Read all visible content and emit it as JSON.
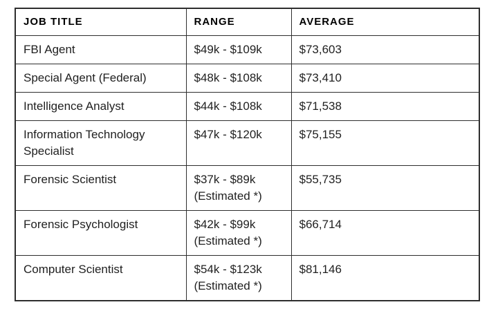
{
  "table": {
    "columns": [
      {
        "key": "job_title",
        "label": "JOB TITLE"
      },
      {
        "key": "range",
        "label": "RANGE"
      },
      {
        "key": "average",
        "label": "AVERAGE"
      }
    ],
    "rows": [
      {
        "job_title": "FBI Agent",
        "range": "$49k - $109k",
        "average": "$73,603"
      },
      {
        "job_title": "Special Agent (Federal)",
        "range": "$48k - $108k",
        "average": "$73,410"
      },
      {
        "job_title": "Intelligence Analyst",
        "range": "$44k - $108k",
        "average": "$71,538"
      },
      {
        "job_title": "Information Technology Specialist",
        "range": "$47k - $120k",
        "average": "$75,155",
        "range_indent": true
      },
      {
        "job_title": "Forensic Scientist",
        "range": "$37k - $89k (Estimated *)",
        "range_lines": [
          "$37k - $89k",
          "(Estimated *)"
        ],
        "average": "$55,735"
      },
      {
        "job_title": "Forensic Psychologist",
        "range": "$42k - $99k (Estimated *)",
        "range_lines": [
          "$42k - $99k",
          "(Estimated *)"
        ],
        "average": "$66,714"
      },
      {
        "job_title": "Computer Scientist",
        "range": "$54k - $123k (Estimated *)",
        "range_lines": [
          "$54k - $123k",
          "(Estimated *)"
        ],
        "average": "$81,146"
      }
    ]
  },
  "chart_data": {
    "type": "table",
    "title": "",
    "columns": [
      "JOB TITLE",
      "RANGE",
      "AVERAGE"
    ],
    "rows": [
      [
        "FBI Agent",
        "$49k - $109k",
        "$73,603"
      ],
      [
        "Special Agent (Federal)",
        "$48k - $108k",
        "$73,410"
      ],
      [
        "Intelligence Analyst",
        "$44k - $108k",
        "$71,538"
      ],
      [
        "Information Technology Specialist",
        "$47k - $120k",
        "$75,155"
      ],
      [
        "Forensic Scientist",
        "$37k - $89k (Estimated *)",
        "$55,735"
      ],
      [
        "Forensic Psychologist",
        "$42k - $99k (Estimated *)",
        "$66,714"
      ],
      [
        "Computer Scientist",
        "$54k - $123k (Estimated *)",
        "$81,146"
      ]
    ]
  },
  "colors": {
    "border": "#2d2d2d",
    "text": "#1f1f1f",
    "header_text": "#000000",
    "background": "#ffffff"
  }
}
